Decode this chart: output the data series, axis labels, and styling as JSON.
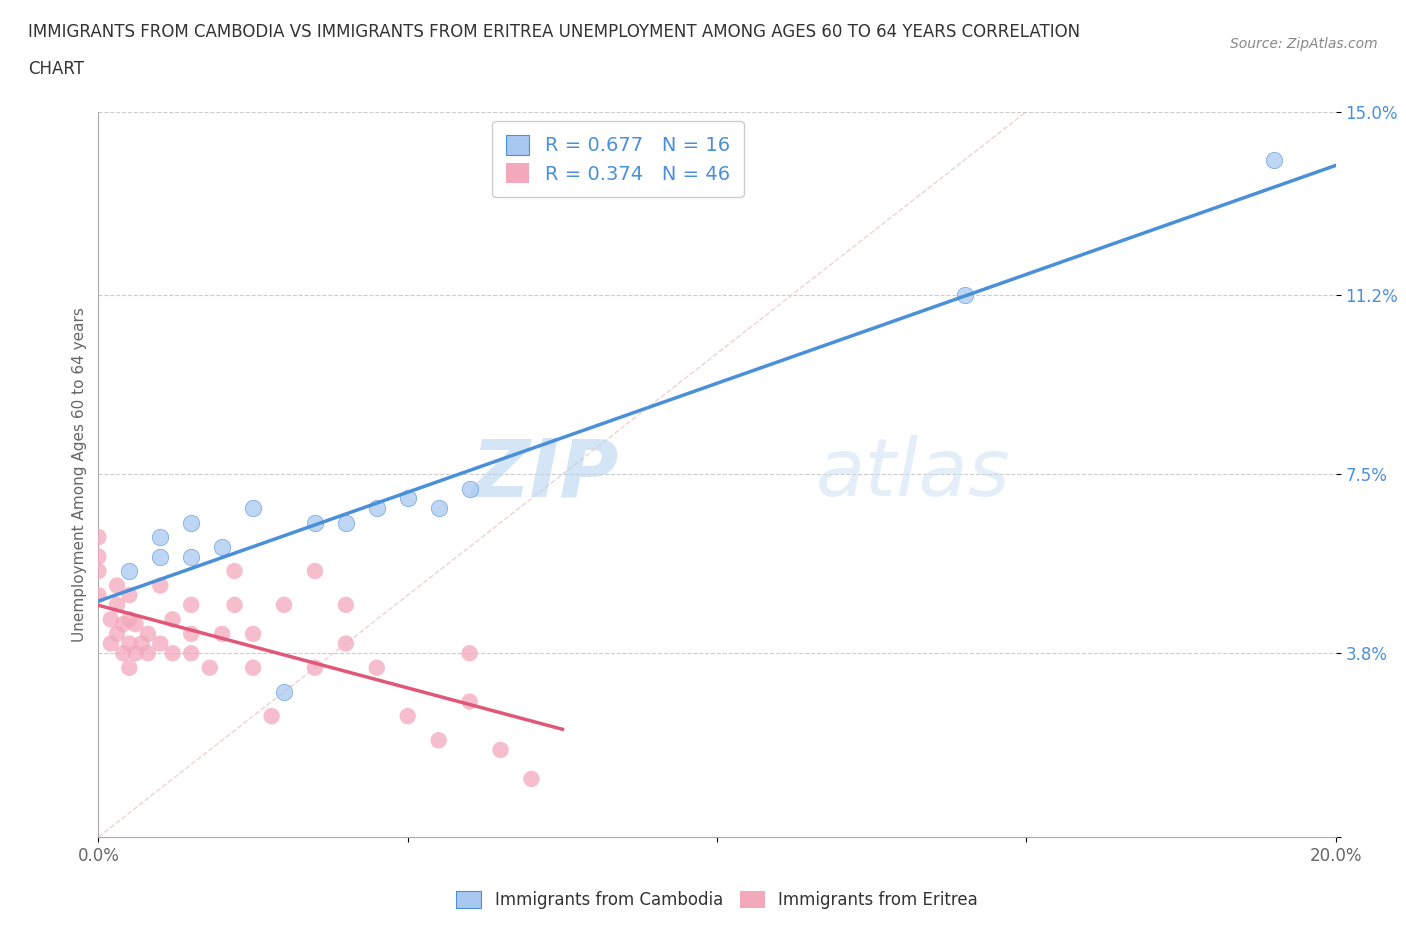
{
  "title_line1": "IMMIGRANTS FROM CAMBODIA VS IMMIGRANTS FROM ERITREA UNEMPLOYMENT AMONG AGES 60 TO 64 YEARS CORRELATION",
  "title_line2": "CHART",
  "source_text": "Source: ZipAtlas.com",
  "ylabel": "Unemployment Among Ages 60 to 64 years",
  "legend_label_cambodia": "Immigrants from Cambodia",
  "legend_label_eritrea": "Immigrants from Eritrea",
  "cambodia_R": "0.677",
  "cambodia_N": "16",
  "eritrea_R": "0.374",
  "eritrea_N": "46",
  "color_cambodia": "#A8C8F0",
  "color_eritrea": "#F4A8BC",
  "color_line_cambodia": "#4A90D9",
  "color_line_eritrea": "#E05878",
  "color_diagonal": "#E8C8C8",
  "xlim": [
    0.0,
    0.2
  ],
  "ylim": [
    0.0,
    0.15
  ],
  "xticks": [
    0.0,
    0.05,
    0.1,
    0.15,
    0.2
  ],
  "xticklabels": [
    "0.0%",
    "",
    "",
    "",
    "20.0%"
  ],
  "ytick_positions": [
    0.0,
    0.038,
    0.075,
    0.112,
    0.15
  ],
  "ytick_labels": [
    "",
    "3.8%",
    "7.5%",
    "11.2%",
    "15.0%"
  ],
  "watermark_zip": "ZIP",
  "watermark_atlas": "atlas",
  "cambodia_x": [
    0.005,
    0.01,
    0.01,
    0.015,
    0.015,
    0.02,
    0.025,
    0.03,
    0.035,
    0.04,
    0.045,
    0.05,
    0.055,
    0.06,
    0.14,
    0.19
  ],
  "cambodia_y": [
    0.055,
    0.058,
    0.062,
    0.058,
    0.065,
    0.06,
    0.068,
    0.03,
    0.065,
    0.065,
    0.068,
    0.07,
    0.068,
    0.072,
    0.112,
    0.14
  ],
  "eritrea_x": [
    0.0,
    0.0,
    0.0,
    0.0,
    0.002,
    0.002,
    0.003,
    0.003,
    0.003,
    0.004,
    0.004,
    0.005,
    0.005,
    0.005,
    0.005,
    0.006,
    0.006,
    0.007,
    0.008,
    0.008,
    0.01,
    0.01,
    0.012,
    0.012,
    0.015,
    0.015,
    0.015,
    0.018,
    0.02,
    0.022,
    0.022,
    0.025,
    0.025,
    0.028,
    0.03,
    0.035,
    0.035,
    0.04,
    0.04,
    0.045,
    0.05,
    0.055,
    0.06,
    0.06,
    0.065,
    0.07
  ],
  "eritrea_y": [
    0.05,
    0.055,
    0.058,
    0.062,
    0.04,
    0.045,
    0.042,
    0.048,
    0.052,
    0.038,
    0.044,
    0.035,
    0.04,
    0.045,
    0.05,
    0.038,
    0.044,
    0.04,
    0.038,
    0.042,
    0.04,
    0.052,
    0.038,
    0.045,
    0.038,
    0.042,
    0.048,
    0.035,
    0.042,
    0.048,
    0.055,
    0.035,
    0.042,
    0.025,
    0.048,
    0.035,
    0.055,
    0.04,
    0.048,
    0.035,
    0.025,
    0.02,
    0.028,
    0.038,
    0.018,
    0.012
  ]
}
